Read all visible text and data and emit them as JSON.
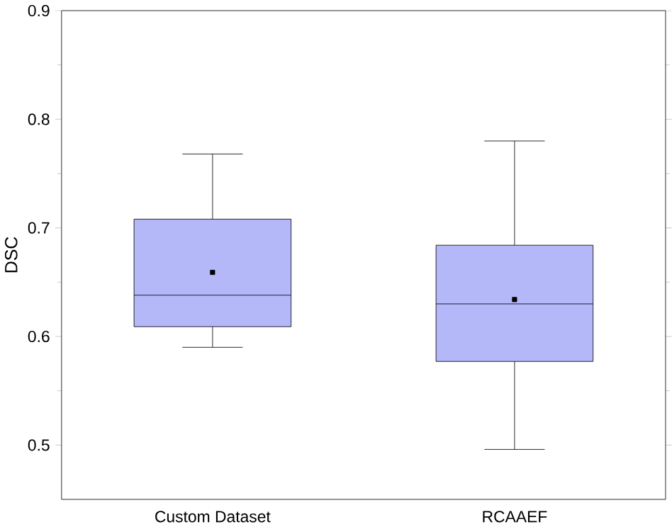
{
  "chart_data": {
    "type": "box",
    "ylabel": "DSC",
    "categories": [
      "Custom Dataset",
      "RCAAEF"
    ],
    "boxes": [
      {
        "low": 0.59,
        "q1": 0.609,
        "median": 0.638,
        "q3": 0.708,
        "high": 0.768,
        "mean": 0.659
      },
      {
        "low": 0.496,
        "q1": 0.577,
        "median": 0.63,
        "q3": 0.684,
        "high": 0.78,
        "mean": 0.634
      }
    ],
    "color": "#b4b8f8",
    "ylim": [
      0.45,
      0.9
    ],
    "yticks": [
      0.5,
      0.6,
      0.7,
      0.8,
      0.9
    ]
  }
}
